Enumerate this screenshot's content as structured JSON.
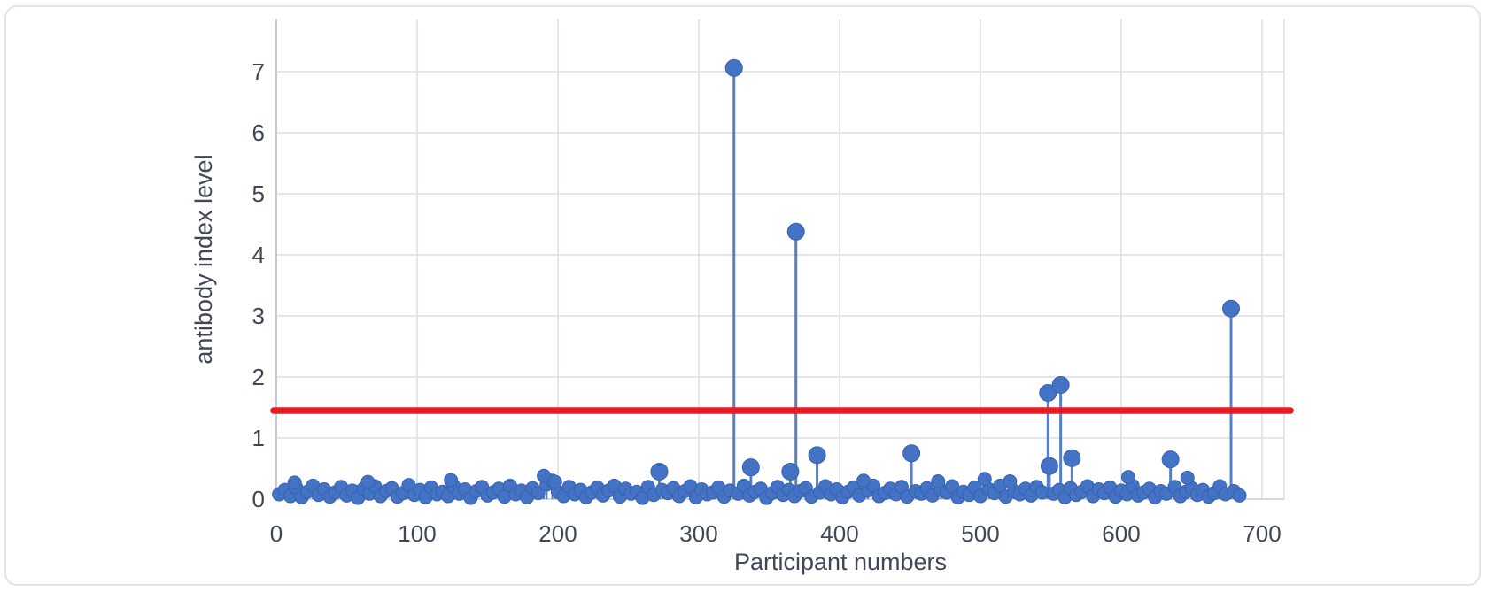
{
  "figure": {
    "background": "#ffffff",
    "border_color": "#e3e3e3",
    "text_color": "#3f4756",
    "gridline_color": "#dcdfe4",
    "axis_line_color": "#c6cbd3"
  },
  "chart_data": {
    "type": "scatter",
    "title": "",
    "xlabel": "Participant numbers",
    "ylabel": "antibody index level",
    "x_ticks": [
      0,
      100,
      200,
      300,
      400,
      500,
      600,
      700
    ],
    "y_ticks": [
      0,
      1,
      2,
      3,
      4,
      5,
      6,
      7
    ],
    "xlim": [
      0,
      716
    ],
    "ylim": [
      0,
      7.86
    ],
    "grid": true,
    "legend_position": "none",
    "marker_color": "#4472c4",
    "marker_edge_color": "#3563ae",
    "threshold_line": {
      "y": 1.45,
      "color": "#ec1b23"
    },
    "series": [
      {
        "name": "antibody index level",
        "outlier_points": [
          [
            13,
            0.27
          ],
          [
            65,
            0.28
          ],
          [
            124,
            0.31
          ],
          [
            190,
            0.38
          ],
          [
            198,
            0.28
          ],
          [
            272,
            0.45
          ],
          [
            325,
            7.06
          ],
          [
            337,
            0.52
          ],
          [
            365,
            0.45
          ],
          [
            384,
            0.72
          ],
          [
            369,
            4.38
          ],
          [
            417,
            0.3
          ],
          [
            451,
            0.75
          ],
          [
            470,
            0.29
          ],
          [
            503,
            0.33
          ],
          [
            521,
            0.29
          ],
          [
            548,
            1.74
          ],
          [
            549,
            0.54
          ],
          [
            557,
            1.87
          ],
          [
            565,
            0.67
          ],
          [
            605,
            0.36
          ],
          [
            635,
            0.65
          ],
          [
            647,
            0.35
          ],
          [
            678,
            3.12
          ]
        ],
        "baseline_points": [
          [
            2,
            0.08
          ],
          [
            6,
            0.15
          ],
          [
            10,
            0.05
          ],
          [
            14,
            0.19
          ],
          [
            18,
            0.03
          ],
          [
            22,
            0.12
          ],
          [
            26,
            0.22
          ],
          [
            30,
            0.07
          ],
          [
            34,
            0.16
          ],
          [
            38,
            0.04
          ],
          [
            42,
            0.11
          ],
          [
            46,
            0.2
          ],
          [
            50,
            0.06
          ],
          [
            54,
            0.14
          ],
          [
            58,
            0.02
          ],
          [
            62,
            0.17
          ],
          [
            66,
            0.09
          ],
          [
            70,
            0.21
          ],
          [
            74,
            0.05
          ],
          [
            78,
            0.13
          ],
          [
            82,
            0.18
          ],
          [
            86,
            0.04
          ],
          [
            90,
            0.1
          ],
          [
            94,
            0.23
          ],
          [
            98,
            0.07
          ],
          [
            102,
            0.15
          ],
          [
            106,
            0.03
          ],
          [
            110,
            0.19
          ],
          [
            114,
            0.08
          ],
          [
            118,
            0.12
          ],
          [
            122,
            0.05
          ],
          [
            126,
            0.21
          ],
          [
            130,
            0.09
          ],
          [
            134,
            0.16
          ],
          [
            138,
            0.02
          ],
          [
            142,
            0.13
          ],
          [
            146,
            0.2
          ],
          [
            150,
            0.06
          ],
          [
            154,
            0.11
          ],
          [
            158,
            0.17
          ],
          [
            162,
            0.04
          ],
          [
            166,
            0.22
          ],
          [
            170,
            0.08
          ],
          [
            174,
            0.14
          ],
          [
            178,
            0.03
          ],
          [
            182,
            0.18
          ],
          [
            186,
            0.1
          ],
          [
            192,
            0.24
          ],
          [
            196,
            0.3
          ],
          [
            200,
            0.12
          ],
          [
            204,
            0.05
          ],
          [
            208,
            0.2
          ],
          [
            212,
            0.08
          ],
          [
            216,
            0.15
          ],
          [
            220,
            0.03
          ],
          [
            224,
            0.11
          ],
          [
            228,
            0.19
          ],
          [
            232,
            0.06
          ],
          [
            236,
            0.14
          ],
          [
            240,
            0.22
          ],
          [
            244,
            0.04
          ],
          [
            248,
            0.17
          ],
          [
            252,
            0.09
          ],
          [
            256,
            0.12
          ],
          [
            260,
            0.02
          ],
          [
            264,
            0.2
          ],
          [
            268,
            0.07
          ],
          [
            274,
            0.15
          ],
          [
            278,
            0.1
          ],
          [
            282,
            0.18
          ],
          [
            286,
            0.05
          ],
          [
            290,
            0.13
          ],
          [
            294,
            0.21
          ],
          [
            298,
            0.03
          ],
          [
            302,
            0.16
          ],
          [
            306,
            0.08
          ],
          [
            310,
            0.11
          ],
          [
            314,
            0.19
          ],
          [
            318,
            0.04
          ],
          [
            322,
            0.14
          ],
          [
            328,
            0.09
          ],
          [
            332,
            0.22
          ],
          [
            336,
            0.06
          ],
          [
            340,
            0.12
          ],
          [
            344,
            0.17
          ],
          [
            348,
            0.02
          ],
          [
            352,
            0.1
          ],
          [
            356,
            0.2
          ],
          [
            360,
            0.07
          ],
          [
            364,
            0.15
          ],
          [
            368,
            0.05
          ],
          [
            372,
            0.13
          ],
          [
            376,
            0.18
          ],
          [
            380,
            0.04
          ],
          [
            386,
            0.11
          ],
          [
            390,
            0.21
          ],
          [
            394,
            0.08
          ],
          [
            398,
            0.16
          ],
          [
            402,
            0.03
          ],
          [
            406,
            0.12
          ],
          [
            410,
            0.19
          ],
          [
            414,
            0.06
          ],
          [
            420,
            0.14
          ],
          [
            424,
            0.22
          ],
          [
            428,
            0.05
          ],
          [
            432,
            0.1
          ],
          [
            436,
            0.17
          ],
          [
            440,
            0.08
          ],
          [
            444,
            0.2
          ],
          [
            448,
            0.04
          ],
          [
            454,
            0.13
          ],
          [
            458,
            0.09
          ],
          [
            462,
            0.18
          ],
          [
            466,
            0.06
          ],
          [
            472,
            0.15
          ],
          [
            476,
            0.11
          ],
          [
            480,
            0.21
          ],
          [
            484,
            0.03
          ],
          [
            488,
            0.12
          ],
          [
            492,
            0.07
          ],
          [
            496,
            0.19
          ],
          [
            500,
            0.05
          ],
          [
            506,
            0.16
          ],
          [
            510,
            0.1
          ],
          [
            514,
            0.22
          ],
          [
            518,
            0.04
          ],
          [
            524,
            0.13
          ],
          [
            528,
            0.08
          ],
          [
            532,
            0.17
          ],
          [
            536,
            0.06
          ],
          [
            540,
            0.2
          ],
          [
            544,
            0.11
          ],
          [
            552,
            0.09
          ],
          [
            556,
            0.15
          ],
          [
            560,
            0.03
          ],
          [
            564,
            0.18
          ],
          [
            568,
            0.07
          ],
          [
            572,
            0.12
          ],
          [
            576,
            0.21
          ],
          [
            580,
            0.05
          ],
          [
            584,
            0.16
          ],
          [
            588,
            0.1
          ],
          [
            592,
            0.19
          ],
          [
            596,
            0.04
          ],
          [
            600,
            0.14
          ],
          [
            604,
            0.08
          ],
          [
            608,
            0.22
          ],
          [
            612,
            0.06
          ],
          [
            616,
            0.11
          ],
          [
            620,
            0.17
          ],
          [
            624,
            0.03
          ],
          [
            628,
            0.13
          ],
          [
            632,
            0.09
          ],
          [
            638,
            0.2
          ],
          [
            642,
            0.05
          ],
          [
            646,
            0.12
          ],
          [
            650,
            0.18
          ],
          [
            654,
            0.07
          ],
          [
            658,
            0.15
          ],
          [
            662,
            0.04
          ],
          [
            666,
            0.1
          ],
          [
            670,
            0.21
          ],
          [
            674,
            0.08
          ],
          [
            680,
            0.13
          ],
          [
            684,
            0.06
          ]
        ]
      }
    ]
  }
}
